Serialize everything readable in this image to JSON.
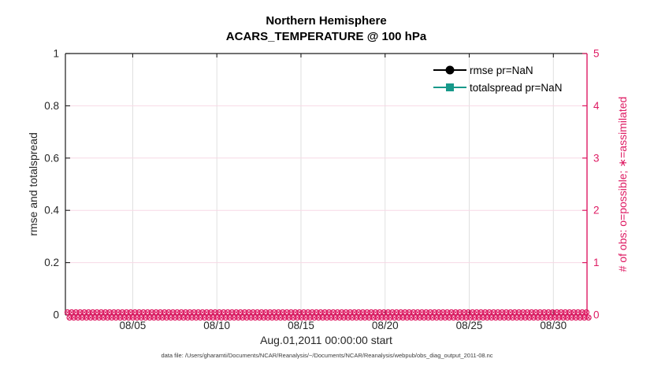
{
  "figure": {
    "title_line1": "Northern Hemisphere",
    "title_line2": "ACARS_TEMPERATURE @ 100 hPa",
    "xlabel": "Aug.01,2011 00:00:00 start",
    "ylabel_left": "rmse and totalspread",
    "ylabel_right": "# of obs: o=possible; ∗=assimilated",
    "caption": "data file: /Users/gharamti/Documents/NCAR/Reanalysis/~/Documents/NCAR/Reanalysis/webpub/obs_diag_output_2011-08.nc"
  },
  "legend": {
    "items": [
      {
        "label": "rmse pr=NaN",
        "marker": "filled-circle",
        "color": "#000000"
      },
      {
        "label": "totalspread pr=NaN",
        "marker": "filled-square",
        "color": "#17998a"
      }
    ]
  },
  "colors": {
    "accent_pink": "#de1b63",
    "teal": "#17998a",
    "grid_pink": "#f7d9e5",
    "grid_gray": "#e0e0e0",
    "axis_dark": "#1c1c1c"
  },
  "chart_data": {
    "type": "line",
    "title": "Northern Hemisphere",
    "subtitle": "ACARS_TEMPERATURE @ 100 hPa",
    "xlabel": "Aug.01,2011 00:00:00 start",
    "x_axis": {
      "start": "Aug.01,2011 00:00:00",
      "range_days": [
        1,
        32
      ],
      "tick_days": [
        5,
        10,
        15,
        20,
        25,
        30
      ],
      "tick_labels": [
        "08/05",
        "08/10",
        "08/15",
        "08/20",
        "08/25",
        "08/30"
      ]
    },
    "y_left": {
      "label": "rmse and totalspread",
      "lim": [
        0,
        1
      ],
      "ticks": [
        0,
        0.2,
        0.4,
        0.6,
        0.8,
        1
      ],
      "tick_labels": [
        "0",
        "0.2",
        "0.4",
        "0.6",
        "0.8",
        "1"
      ]
    },
    "y_right": {
      "label": "# of obs: o=possible; ∗=assimilated",
      "lim": [
        0,
        5
      ],
      "ticks": [
        0,
        1,
        2,
        3,
        4,
        5
      ],
      "tick_labels": [
        "0",
        "1",
        "2",
        "3",
        "4",
        "5"
      ]
    },
    "grid": true,
    "legend_position": "top-right inside, no box",
    "series": [
      {
        "name": "rmse pr=NaN",
        "color": "#000000",
        "marker": "filled-circle",
        "values": "NaN",
        "plotted": false
      },
      {
        "name": "totalspread pr=NaN",
        "color": "#17998a",
        "marker": "filled-square",
        "values": "NaN",
        "plotted": false
      },
      {
        "name": "# of obs possible (o)",
        "axis": "right",
        "color": "#de1b63",
        "marker": "o",
        "constant_value": 0,
        "n_points": 124
      },
      {
        "name": "# of obs assimilated (∗)",
        "axis": "right",
        "color": "#de1b63",
        "marker": "asterisk",
        "constant_value": 0,
        "n_points": 124
      }
    ]
  }
}
